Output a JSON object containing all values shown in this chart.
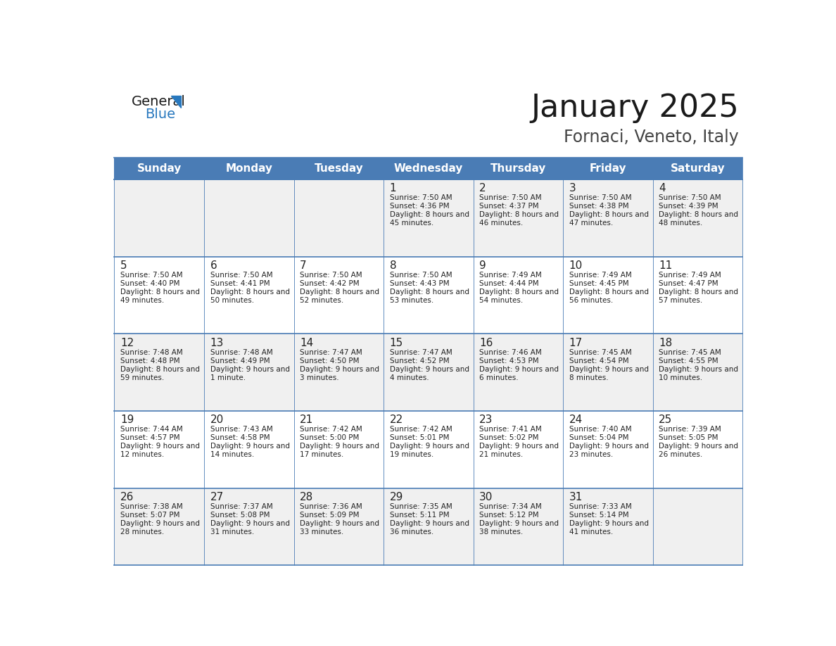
{
  "title": "January 2025",
  "subtitle": "Fornaci, Veneto, Italy",
  "days_of_week": [
    "Sunday",
    "Monday",
    "Tuesday",
    "Wednesday",
    "Thursday",
    "Friday",
    "Saturday"
  ],
  "header_bg": "#4a7cb5",
  "header_text": "#ffffff",
  "cell_bg_odd": "#f0f0f0",
  "cell_bg_even": "#ffffff",
  "border_color": "#4a7cb5",
  "day_num_color": "#222222",
  "text_color": "#222222",
  "title_color": "#1a1a1a",
  "subtitle_color": "#444444",
  "logo_general_color": "#1a1a1a",
  "logo_blue_color": "#2878be",
  "weeks": [
    [
      {
        "day": "",
        "sunrise": "",
        "sunset": "",
        "daylight": ""
      },
      {
        "day": "",
        "sunrise": "",
        "sunset": "",
        "daylight": ""
      },
      {
        "day": "",
        "sunrise": "",
        "sunset": "",
        "daylight": ""
      },
      {
        "day": "1",
        "sunrise": "7:50 AM",
        "sunset": "4:36 PM",
        "daylight": "8 hours and 45 minutes."
      },
      {
        "day": "2",
        "sunrise": "7:50 AM",
        "sunset": "4:37 PM",
        "daylight": "8 hours and 46 minutes."
      },
      {
        "day": "3",
        "sunrise": "7:50 AM",
        "sunset": "4:38 PM",
        "daylight": "8 hours and 47 minutes."
      },
      {
        "day": "4",
        "sunrise": "7:50 AM",
        "sunset": "4:39 PM",
        "daylight": "8 hours and 48 minutes."
      }
    ],
    [
      {
        "day": "5",
        "sunrise": "7:50 AM",
        "sunset": "4:40 PM",
        "daylight": "8 hours and 49 minutes."
      },
      {
        "day": "6",
        "sunrise": "7:50 AM",
        "sunset": "4:41 PM",
        "daylight": "8 hours and 50 minutes."
      },
      {
        "day": "7",
        "sunrise": "7:50 AM",
        "sunset": "4:42 PM",
        "daylight": "8 hours and 52 minutes."
      },
      {
        "day": "8",
        "sunrise": "7:50 AM",
        "sunset": "4:43 PM",
        "daylight": "8 hours and 53 minutes."
      },
      {
        "day": "9",
        "sunrise": "7:49 AM",
        "sunset": "4:44 PM",
        "daylight": "8 hours and 54 minutes."
      },
      {
        "day": "10",
        "sunrise": "7:49 AM",
        "sunset": "4:45 PM",
        "daylight": "8 hours and 56 minutes."
      },
      {
        "day": "11",
        "sunrise": "7:49 AM",
        "sunset": "4:47 PM",
        "daylight": "8 hours and 57 minutes."
      }
    ],
    [
      {
        "day": "12",
        "sunrise": "7:48 AM",
        "sunset": "4:48 PM",
        "daylight": "8 hours and 59 minutes."
      },
      {
        "day": "13",
        "sunrise": "7:48 AM",
        "sunset": "4:49 PM",
        "daylight": "9 hours and 1 minute."
      },
      {
        "day": "14",
        "sunrise": "7:47 AM",
        "sunset": "4:50 PM",
        "daylight": "9 hours and 3 minutes."
      },
      {
        "day": "15",
        "sunrise": "7:47 AM",
        "sunset": "4:52 PM",
        "daylight": "9 hours and 4 minutes."
      },
      {
        "day": "16",
        "sunrise": "7:46 AM",
        "sunset": "4:53 PM",
        "daylight": "9 hours and 6 minutes."
      },
      {
        "day": "17",
        "sunrise": "7:45 AM",
        "sunset": "4:54 PM",
        "daylight": "9 hours and 8 minutes."
      },
      {
        "day": "18",
        "sunrise": "7:45 AM",
        "sunset": "4:55 PM",
        "daylight": "9 hours and 10 minutes."
      }
    ],
    [
      {
        "day": "19",
        "sunrise": "7:44 AM",
        "sunset": "4:57 PM",
        "daylight": "9 hours and 12 minutes."
      },
      {
        "day": "20",
        "sunrise": "7:43 AM",
        "sunset": "4:58 PM",
        "daylight": "9 hours and 14 minutes."
      },
      {
        "day": "21",
        "sunrise": "7:42 AM",
        "sunset": "5:00 PM",
        "daylight": "9 hours and 17 minutes."
      },
      {
        "day": "22",
        "sunrise": "7:42 AM",
        "sunset": "5:01 PM",
        "daylight": "9 hours and 19 minutes."
      },
      {
        "day": "23",
        "sunrise": "7:41 AM",
        "sunset": "5:02 PM",
        "daylight": "9 hours and 21 minutes."
      },
      {
        "day": "24",
        "sunrise": "7:40 AM",
        "sunset": "5:04 PM",
        "daylight": "9 hours and 23 minutes."
      },
      {
        "day": "25",
        "sunrise": "7:39 AM",
        "sunset": "5:05 PM",
        "daylight": "9 hours and 26 minutes."
      }
    ],
    [
      {
        "day": "26",
        "sunrise": "7:38 AM",
        "sunset": "5:07 PM",
        "daylight": "9 hours and 28 minutes."
      },
      {
        "day": "27",
        "sunrise": "7:37 AM",
        "sunset": "5:08 PM",
        "daylight": "9 hours and 31 minutes."
      },
      {
        "day": "28",
        "sunrise": "7:36 AM",
        "sunset": "5:09 PM",
        "daylight": "9 hours and 33 minutes."
      },
      {
        "day": "29",
        "sunrise": "7:35 AM",
        "sunset": "5:11 PM",
        "daylight": "9 hours and 36 minutes."
      },
      {
        "day": "30",
        "sunrise": "7:34 AM",
        "sunset": "5:12 PM",
        "daylight": "9 hours and 38 minutes."
      },
      {
        "day": "31",
        "sunrise": "7:33 AM",
        "sunset": "5:14 PM",
        "daylight": "9 hours and 41 minutes."
      },
      {
        "day": "",
        "sunrise": "",
        "sunset": "",
        "daylight": ""
      }
    ]
  ]
}
